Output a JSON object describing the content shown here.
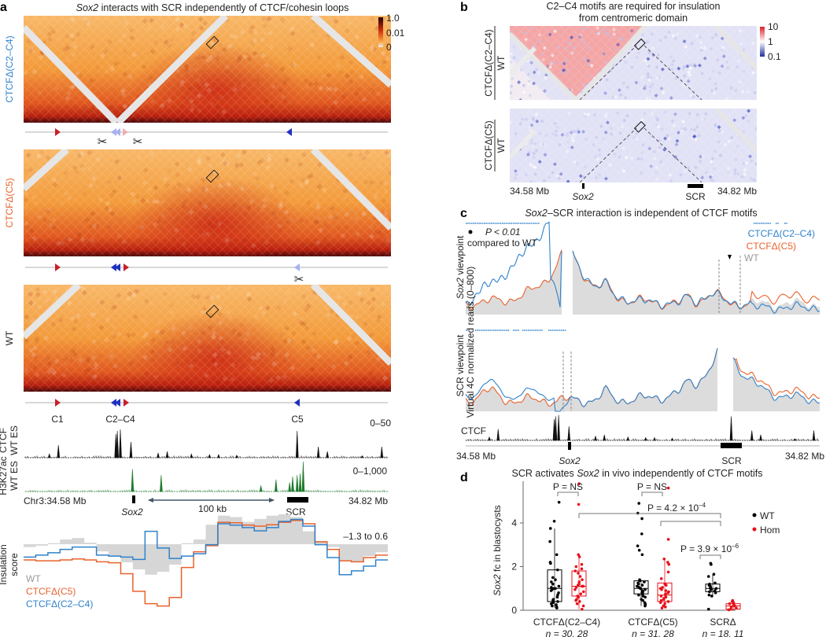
{
  "panel_a": {
    "label": "a",
    "title_italic": "Sox2",
    "title_rest": " interacts with SCR independently of CTCF/cohesin loops",
    "maps": [
      {
        "label": "CTCFΔ(C2–C4)",
        "color": "#2f82cc"
      },
      {
        "label": "CTCFΔ(C5)",
        "color": "#e8622c"
      },
      {
        "label": "WT",
        "color": "#222222"
      }
    ],
    "colorbar_ticks": [
      "1.0",
      "0.01",
      "0"
    ],
    "motif_labels": [
      "C1",
      "C2–C4",
      "C5"
    ],
    "ctcf_track": {
      "label1": "CTCF",
      "label2": "WT ES",
      "range": "0–50"
    },
    "h3k27ac_track": {
      "label1": "H3K27ac",
      "label2": "WT ES",
      "range": "0–1,000"
    },
    "coord_left": "Chr3:34.58 Mb",
    "coord_right": "34.82 Mb",
    "gene_sox2": "Sox2",
    "gene_scr": "SCR",
    "scale_bar": "100 kb",
    "insulation": {
      "ylabel1": "Insulation",
      "ylabel2": "score",
      "range": "–1.3 to 0.6",
      "ylim": [
        -1.3,
        0.6
      ],
      "legend": [
        "WT",
        "CTCFΔ(C5)",
        "CTCFΔ(C2–C4)"
      ],
      "wt": [
        -0.06,
        -0.03,
        0.02,
        0.1,
        0.13,
        0.03,
        -0.15,
        -0.26,
        -0.38,
        -0.53,
        -0.64,
        -0.58,
        -0.43,
        0.02,
        0.1,
        0.41,
        0.6,
        0.57,
        0.47,
        0.53,
        0.6,
        0.63,
        0.57,
        0.27,
        0.07,
        -0.06,
        -0.35,
        -0.37,
        -0.25,
        -0.17
      ],
      "c5": [
        -0.33,
        -0.35,
        -0.35,
        -0.33,
        -0.31,
        -0.33,
        -0.37,
        -0.39,
        -0.62,
        -0.99,
        -1.25,
        -1.3,
        -1.12,
        -0.49,
        -0.16,
        -0.03,
        0.46,
        0.45,
        0.4,
        0.38,
        0.41,
        0.46,
        0.5,
        0.43,
        0.05,
        -0.11,
        -0.35,
        -0.37,
        -0.28,
        -0.23
      ],
      "c2c4": [
        -0.27,
        -0.23,
        -0.18,
        -0.11,
        -0.06,
        -0.06,
        -0.23,
        -0.25,
        -0.27,
        -0.32,
        0.27,
        -0.08,
        -0.3,
        -0.25,
        -0.2,
        -0.01,
        0.43,
        0.4,
        0.35,
        0.28,
        0.35,
        0.48,
        0.52,
        0.38,
        -0.01,
        -0.28,
        -0.64,
        -0.56,
        -0.46,
        -0.33
      ]
    }
  },
  "panel_b": {
    "label": "b",
    "title1": "C2–C4 motifs are required for insulation",
    "title2": "from centromeric domain",
    "maps": [
      {
        "num": "CTCFΔ(C2–C4)",
        "den": "WT"
      },
      {
        "num": "CTCFΔ(C5)",
        "den": "WT"
      }
    ],
    "colorbar_ticks": [
      "10",
      "1",
      "0.1"
    ],
    "coord_left": "34.58 Mb",
    "coord_right": "34.82 Mb",
    "gene_sox2": "Sox2",
    "gene_scr": "SCR"
  },
  "panel_c": {
    "label": "c",
    "title_italic": "Sox2",
    "title_rest": "–SCR interaction is independent of CTCF motifs",
    "sig_note1": "P < 0.01",
    "sig_note2": "compared to WT",
    "legend": [
      "CTCFΔ(C2–C4)",
      "CTCFΔ(C5)",
      "WT"
    ],
    "viewpoint1_italic": "Sox2",
    "viewpoint1_rest": " viewpoint",
    "viewpoint2": "SCR viewpoint",
    "ylabel": "Virtual 4C normalized reads (0–800)",
    "ctcf_label": "CTCF",
    "coord_left": "34.58 Mb",
    "coord_right": "34.82 Mb",
    "gene_sox2": "Sox2",
    "gene_scr": "SCR"
  },
  "ctcf_peaks_mb": [
    [
      34.602,
      0.4
    ],
    [
      34.64,
      0.75
    ],
    [
      34.641,
      0.85
    ],
    [
      34.643,
      0.9
    ],
    [
      34.65,
      0.5
    ],
    [
      34.668,
      0.15
    ],
    [
      34.69,
      0.12
    ],
    [
      34.702,
      0.1
    ],
    [
      34.72,
      0.08
    ],
    [
      34.76,
      0.85
    ],
    [
      34.774,
      0.35
    ],
    [
      34.78,
      0.2
    ],
    [
      34.803,
      0.06
    ],
    [
      34.816,
      0.35
    ],
    [
      34.596,
      0.12
    ],
    [
      34.674,
      0.2
    ],
    [
      34.708,
      0.1
    ]
  ],
  "h3k27ac_peaks_mb": [
    [
      34.651,
      0.75
    ],
    [
      34.67,
      0.55
    ],
    [
      34.736,
      0.2
    ],
    [
      34.746,
      0.4
    ],
    [
      34.755,
      0.3
    ],
    [
      34.757,
      0.5
    ],
    [
      34.76,
      0.55
    ],
    [
      34.762,
      0.6
    ],
    [
      34.764,
      1.0
    ]
  ],
  "chart_data": {
    "type": "box",
    "title_pre": "SCR activates ",
    "title_italic": "Sox2",
    "title_post": " in vivo independently of CTCF motifs",
    "label": "d",
    "ylabel_italic": "Sox2",
    "ylabel_rest": " fc in blastocysts",
    "yticks": [
      "0",
      "2",
      "4"
    ],
    "ylim": [
      0,
      5.8
    ],
    "legend": [
      "WT",
      "Hom"
    ],
    "series_colors": {
      "WT": "#000000",
      "Hom": "#e8101a"
    },
    "groups": [
      {
        "name": "CTCFΔ(C2–C4)",
        "n": "n = 30, 28",
        "color": "#2f82cc",
        "wt": {
          "q1": 0.4,
          "median": 1.0,
          "q3": 1.85,
          "lo": 0.1,
          "hi": 3.75,
          "points": [
            4.95,
            4.08,
            3.75,
            3.15,
            2.55,
            2.2,
            2.15,
            1.85,
            1.5,
            1.4,
            1.3,
            1.2,
            1.1,
            1.05,
            1.0,
            1.0,
            0.95,
            0.9,
            0.8,
            0.7,
            0.6,
            0.5,
            0.45,
            0.4,
            0.35,
            0.3,
            0.25,
            0.2,
            0.15,
            0.1
          ]
        },
        "hom": {
          "q1": 0.65,
          "median": 1.1,
          "q3": 1.8,
          "lo": 0.05,
          "hi": 2.55,
          "points": [
            5.8,
            4.85,
            2.55,
            2.45,
            2.1,
            2.0,
            1.9,
            1.8,
            1.7,
            1.55,
            1.4,
            1.3,
            1.2,
            1.15,
            1.1,
            1.1,
            1.05,
            0.95,
            0.85,
            0.75,
            0.65,
            0.6,
            0.5,
            0.45,
            0.4,
            0.3,
            0.2,
            0.05
          ]
        }
      },
      {
        "name": "CTCFΔ(C5)",
        "n": "n = 31, 28",
        "color": "#e8622c",
        "wt": {
          "q1": 0.75,
          "median": 1.0,
          "q3": 1.35,
          "lo": 0.2,
          "hi": 1.4,
          "points": [
            4.9,
            4.45,
            4.2,
            3.5,
            2.95,
            2.75,
            2.55,
            1.4,
            1.35,
            1.3,
            1.25,
            1.2,
            1.15,
            1.1,
            1.05,
            1.0,
            1.0,
            0.95,
            0.9,
            0.85,
            0.8,
            0.75,
            0.7,
            0.65,
            0.6,
            0.5,
            0.45,
            0.35,
            0.3,
            0.25,
            0.2
          ]
        },
        "hom": {
          "q1": 0.4,
          "median": 0.7,
          "q3": 1.25,
          "lo": 0.1,
          "hi": 2.3,
          "points": [
            5.6,
            3.25,
            2.35,
            2.2,
            2.1,
            1.75,
            1.45,
            1.2,
            1.15,
            1.05,
            1.0,
            0.95,
            0.9,
            0.85,
            0.8,
            0.75,
            0.7,
            0.65,
            0.6,
            0.55,
            0.5,
            0.45,
            0.4,
            0.35,
            0.3,
            0.2,
            0.15,
            0.1
          ]
        }
      },
      {
        "name": "SCRΔ",
        "n": "n = 18, 11",
        "color": "#222222",
        "wt": {
          "q1": 0.85,
          "median": 1.0,
          "q3": 1.2,
          "lo": 0.65,
          "hi": 1.65,
          "points": [
            2.15,
            2.1,
            1.65,
            1.55,
            1.25,
            1.2,
            1.15,
            1.1,
            1.05,
            1.0,
            1.0,
            0.95,
            0.9,
            0.85,
            0.8,
            0.7,
            0.65,
            0.05
          ]
        },
        "hom": {
          "q1": 0.05,
          "median": 0.2,
          "q3": 0.3,
          "lo": 0.0,
          "hi": 0.45,
          "points": [
            0.45,
            0.4,
            0.35,
            0.3,
            0.25,
            0.2,
            0.2,
            0.15,
            0.1,
            0.05,
            0.02
          ]
        }
      }
    ],
    "pvalues": [
      "P = NS",
      "P = NS",
      "P = 4.2 × 10",
      "–4",
      "P = 3.9 × 10",
      "–6"
    ]
  }
}
